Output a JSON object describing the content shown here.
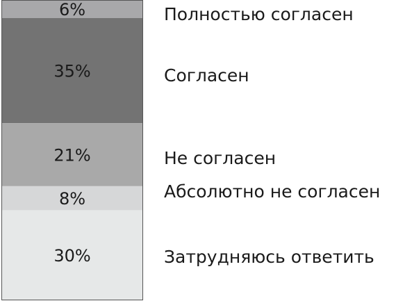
{
  "chart_data": {
    "type": "bar",
    "subtype": "stacked-100",
    "title": "",
    "xlabel": "",
    "ylabel": "",
    "ylim": [
      0,
      100
    ],
    "grid": false,
    "legend": "right",
    "series": [
      {
        "name": "Полностью согласен",
        "value": 6,
        "value_label": "6%",
        "color": "#a8a8aa"
      },
      {
        "name": "Согласен",
        "value": 35,
        "value_label": "35%",
        "color": "#737373"
      },
      {
        "name": "Не согласен",
        "value": 21,
        "value_label": "21%",
        "color": "#a9a9a9"
      },
      {
        "name": "Абсолютно не согласен",
        "value": 8,
        "value_label": "8%",
        "color": "#d6d7d8"
      },
      {
        "name": "Затрудняюсь ответить",
        "value": 30,
        "value_label": "30%",
        "color": "#e6e8e8"
      }
    ]
  }
}
